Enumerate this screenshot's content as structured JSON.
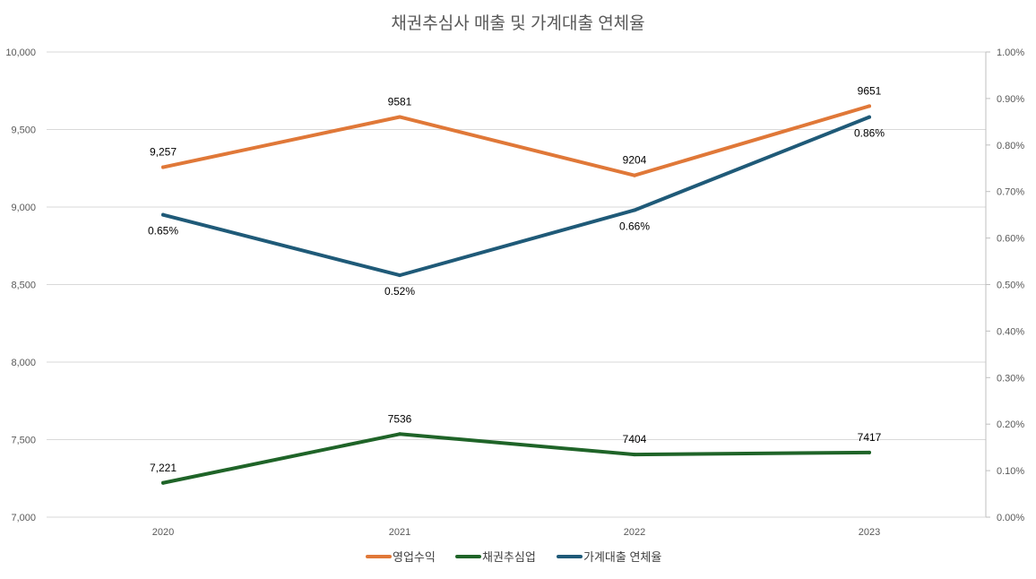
{
  "chart_data": {
    "type": "line",
    "title": "채권추심사 매출 및 가계대출 연체율",
    "categories": [
      "2020",
      "2021",
      "2022",
      "2023"
    ],
    "y_left": {
      "range": [
        7000,
        10000
      ],
      "ticks": [
        7000,
        7500,
        8000,
        8500,
        9000,
        9500,
        10000
      ],
      "tick_labels": [
        "7,000",
        "7,500",
        "8,000",
        "8,500",
        "9,000",
        "9,500",
        "10,000"
      ]
    },
    "y_right": {
      "range": [
        0,
        1.0
      ],
      "unit": "%",
      "ticks": [
        0,
        0.1,
        0.2,
        0.3,
        0.4,
        0.5,
        0.6,
        0.7,
        0.8,
        0.9,
        1.0
      ],
      "tick_labels": [
        "0.00%",
        "0.10%",
        "0.20%",
        "0.30%",
        "0.40%",
        "0.50%",
        "0.60%",
        "0.70%",
        "0.80%",
        "0.90%",
        "1.00%"
      ]
    },
    "grid": "horizontal",
    "legend": "bottom",
    "series": [
      {
        "name": "영업수익",
        "axis": "left",
        "color": "#E07838",
        "values": [
          9257,
          9581,
          9204,
          9651
        ],
        "labels": [
          "9,257",
          "9581",
          "9204",
          "9651"
        ],
        "label_pos": "above"
      },
      {
        "name": "채권추심업",
        "axis": "left",
        "color": "#1F6428",
        "values": [
          7221,
          7536,
          7404,
          7417
        ],
        "labels": [
          "7,221",
          "7536",
          "7404",
          "7417"
        ],
        "label_pos": "above"
      },
      {
        "name": "가계대출 연체율",
        "axis": "right",
        "color": "#1F5A78",
        "values": [
          0.65,
          0.52,
          0.66,
          0.86
        ],
        "labels": [
          "0.65%",
          "0.52%",
          "0.66%",
          "0.86%"
        ],
        "label_pos": "below"
      }
    ]
  }
}
